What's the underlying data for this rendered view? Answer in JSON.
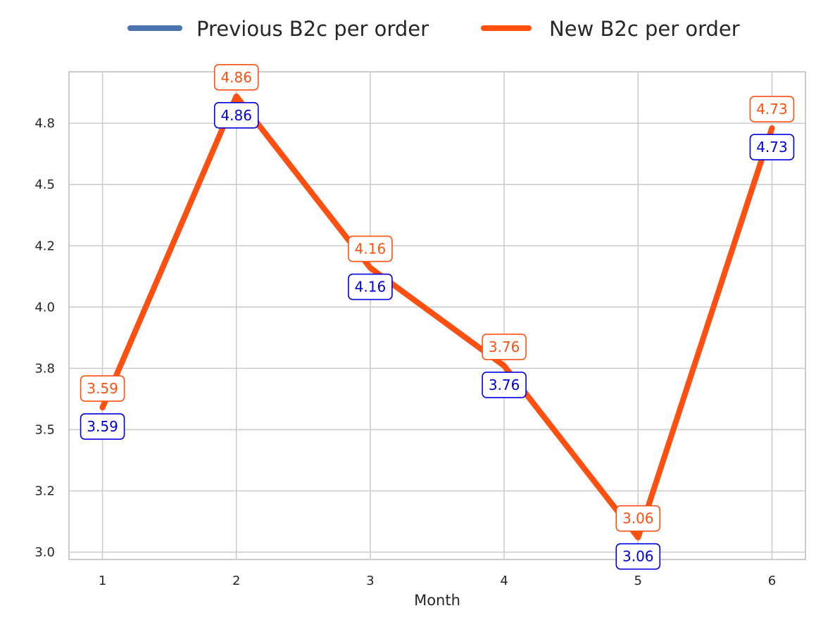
{
  "chart_data": {
    "type": "line",
    "title": "",
    "xlabel": "Month",
    "ylabel": "",
    "x": [
      1,
      2,
      3,
      4,
      5,
      6
    ],
    "x_tick_labels": [
      "1",
      "2",
      "3",
      "4",
      "5",
      "6"
    ],
    "y_ticks": [
      3.0,
      3.25,
      3.5,
      3.75,
      4.0,
      4.25,
      4.5,
      4.75
    ],
    "y_tick_labels": [
      "3.0",
      "3.2",
      "3.5",
      "3.8",
      "4.0",
      "4.2",
      "4.5",
      "4.8"
    ],
    "ylim": [
      2.97,
      4.96
    ],
    "grid": true,
    "legend_placement": "top-center",
    "series": [
      {
        "name": "Previous B2c per order",
        "values": [
          3.59,
          4.86,
          4.16,
          3.76,
          3.06,
          4.73
        ],
        "labels": [
          "3.59",
          "4.86",
          "4.16",
          "3.76",
          "3.06",
          "4.73"
        ],
        "color": "#4c72b0",
        "label_color": "#0000dd",
        "label_position": "below"
      },
      {
        "name": "New B2c per order",
        "values": [
          3.59,
          4.86,
          4.16,
          3.76,
          3.06,
          4.73
        ],
        "labels": [
          "3.59",
          "4.86",
          "4.16",
          "3.76",
          "3.06",
          "4.73"
        ],
        "color": "#ff5010",
        "label_color": "#ff5010",
        "label_position": "above"
      }
    ]
  }
}
